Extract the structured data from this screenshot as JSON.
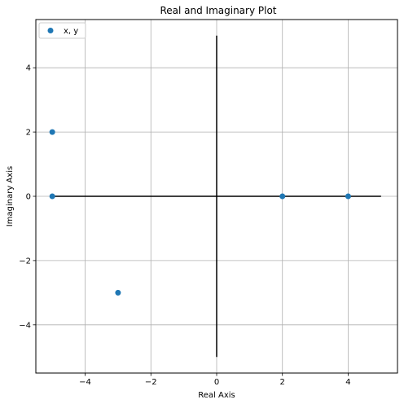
{
  "chart_data": {
    "type": "scatter",
    "title": "Real and Imaginary Plot",
    "xlabel": "Real Axis",
    "ylabel": "Imaginary Axis",
    "xlim": [
      -5.5,
      5.5
    ],
    "ylim": [
      -5.5,
      5.5
    ],
    "xticks": [
      -4,
      -2,
      0,
      2,
      4
    ],
    "yticks": [
      -4,
      -2,
      0,
      2,
      4
    ],
    "xtick_labels": [
      "−4",
      "−2",
      "0",
      "2",
      "4"
    ],
    "ytick_labels": [
      "−4",
      "−2",
      "0",
      "2",
      "4"
    ],
    "grid": true,
    "legend": "top-left",
    "series": [
      {
        "name": "x, y",
        "color": "#1f77b4",
        "x": [
          -5,
          -5,
          -3,
          2,
          4
        ],
        "y": [
          2,
          0,
          -3,
          0,
          0
        ]
      }
    ],
    "reference_lines": [
      {
        "x": [
          -5,
          5
        ],
        "y": [
          0,
          0
        ],
        "color": "#000000"
      },
      {
        "x": [
          0,
          0
        ],
        "y": [
          -5,
          5
        ],
        "color": "#000000"
      }
    ]
  }
}
